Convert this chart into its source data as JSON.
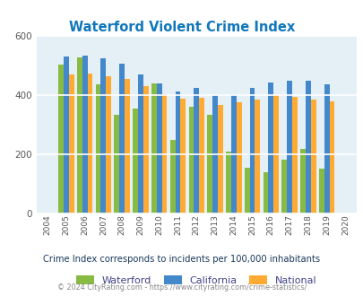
{
  "title": "Waterford Violent Crime Index",
  "years": [
    2004,
    2005,
    2006,
    2007,
    2008,
    2009,
    2010,
    2011,
    2012,
    2013,
    2014,
    2015,
    2016,
    2017,
    2018,
    2019,
    2020
  ],
  "waterford": [
    null,
    503,
    525,
    435,
    333,
    352,
    437,
    247,
    358,
    332,
    208,
    152,
    137,
    182,
    218,
    150,
    null
  ],
  "california": [
    null,
    528,
    533,
    522,
    505,
    468,
    437,
    410,
    422,
    400,
    399,
    422,
    442,
    447,
    448,
    436,
    null
  ],
  "national": [
    null,
    468,
    472,
    462,
    452,
    428,
    403,
    388,
    390,
    366,
    375,
    383,
    400,
    393,
    385,
    379,
    null
  ],
  "bar_colors": {
    "waterford": "#88bb44",
    "california": "#4488cc",
    "national": "#ffaa33"
  },
  "bg_color": "#e4f0f5",
  "ylim": [
    0,
    600
  ],
  "yticks": [
    0,
    200,
    400,
    600
  ],
  "subtitle": "Crime Index corresponds to incidents per 100,000 inhabitants",
  "footer": "© 2024 CityRating.com - https://www.cityrating.com/crime-statistics/",
  "title_color": "#1177bb",
  "subtitle_color": "#1a3a5c",
  "footer_color": "#888888",
  "legend_labels": [
    "Waterford",
    "California",
    "National"
  ],
  "legend_text_color": "#444488"
}
